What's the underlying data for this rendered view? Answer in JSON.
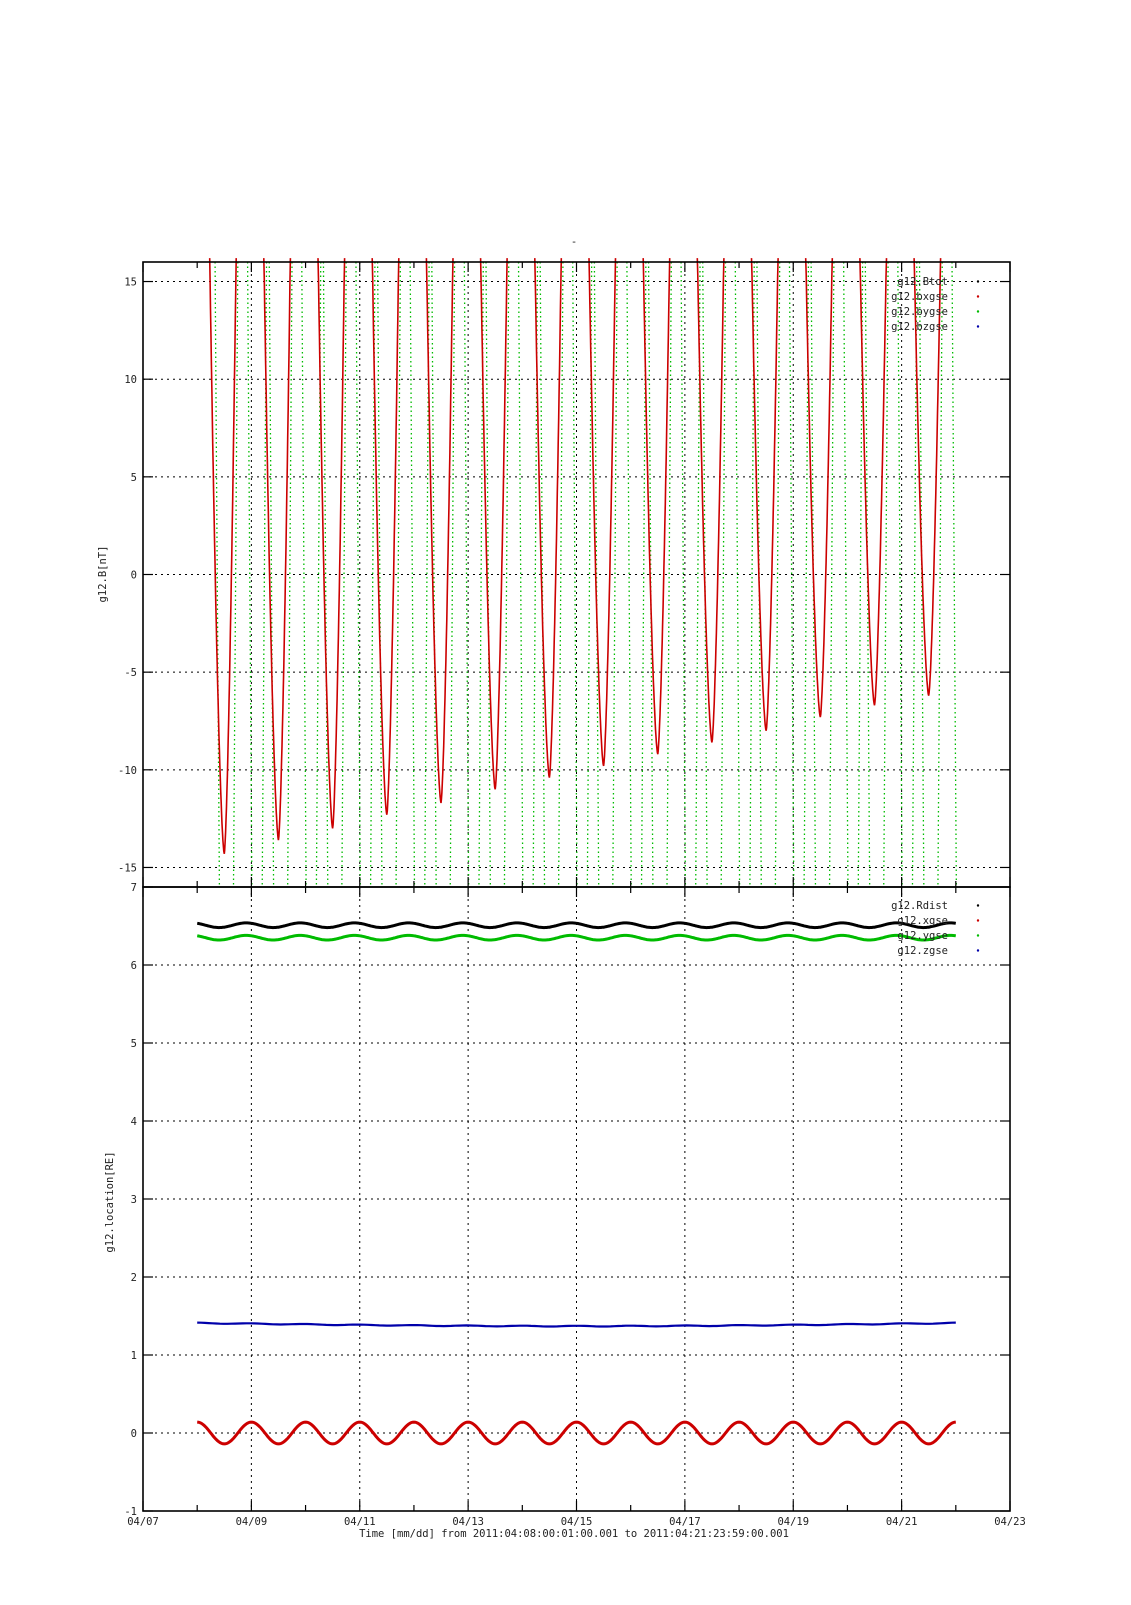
{
  "page_title": "-",
  "colors": {
    "Btot": "#000000",
    "xgse": "#cc0000",
    "ygse": "#00bb00",
    "zgse": "#0000aa"
  },
  "xaxis": {
    "label": "Time [mm/dd]  from 2011:04:08:00:01:00.001  to  2011:04:21:23:59:00.001",
    "ticks": [
      "04/07",
      "04/09",
      "04/11",
      "04/13",
      "04/15",
      "04/17",
      "04/19",
      "04/21",
      "04/23"
    ]
  },
  "chart_data": [
    {
      "type": "scatter",
      "title": "",
      "ylabel": "g12.B[nT]",
      "ylim": [
        -16,
        16
      ],
      "yticks": [
        "-15",
        "-10",
        "-5",
        "0",
        "5",
        "10",
        "15"
      ],
      "x_range": [
        "04/07",
        "04/23"
      ],
      "grid": true,
      "legend": "top-right",
      "series": [
        {
          "name": "g12.Btot",
          "color": "#000000",
          "points": []
        },
        {
          "name": "g12.bxgse",
          "color": "#cc0000",
          "minima": [
            {
              "x": "04/08 12:00",
              "y": -14.3
            },
            {
              "x": "04/09 12:00",
              "y": -13.6
            },
            {
              "x": "04/10 12:00",
              "y": -13.0
            },
            {
              "x": "04/11 12:00",
              "y": -12.3
            },
            {
              "x": "04/12 12:00",
              "y": -11.7
            },
            {
              "x": "04/13 12:00",
              "y": -11.0
            },
            {
              "x": "04/14 12:00",
              "y": -10.4
            },
            {
              "x": "04/15 12:00",
              "y": -9.8
            },
            {
              "x": "04/16 12:00",
              "y": -9.2
            },
            {
              "x": "04/17 12:00",
              "y": -8.6
            },
            {
              "x": "04/18 12:00",
              "y": -8.0
            },
            {
              "x": "04/19 12:00",
              "y": -7.3
            },
            {
              "x": "04/20 12:00",
              "y": -6.7
            },
            {
              "x": "04/21 12:00",
              "y": -6.2
            }
          ]
        },
        {
          "name": "g12.bygse",
          "color": "#00bb00",
          "points": []
        },
        {
          "name": "g12.bzgse",
          "color": "#0000aa",
          "points": []
        }
      ]
    },
    {
      "type": "scatter",
      "title": "",
      "ylabel": "g12.location[RE]",
      "ylim": [
        -1,
        7
      ],
      "yticks": [
        "-1",
        "0",
        "1",
        "2",
        "3",
        "4",
        "5",
        "6",
        "7"
      ],
      "x_range": [
        "04/07",
        "04/23"
      ],
      "grid": true,
      "legend": "top-right",
      "series": [
        {
          "name": "g12.Rdist",
          "color": "#000000",
          "mean": 6.51,
          "amplitude": 0.03,
          "period_days": 1
        },
        {
          "name": "g12.xgse",
          "color": "#cc0000",
          "mean": 0.0,
          "amplitude": 0.14,
          "period_days": 1
        },
        {
          "name": "g12.ygse",
          "color": "#00bb00",
          "mean": 6.35,
          "amplitude": 0.03,
          "period_days": 1
        },
        {
          "name": "g12.zgse",
          "color": "#0000aa",
          "start": 1.41,
          "mid": 1.37,
          "end": 1.41
        }
      ]
    }
  ]
}
